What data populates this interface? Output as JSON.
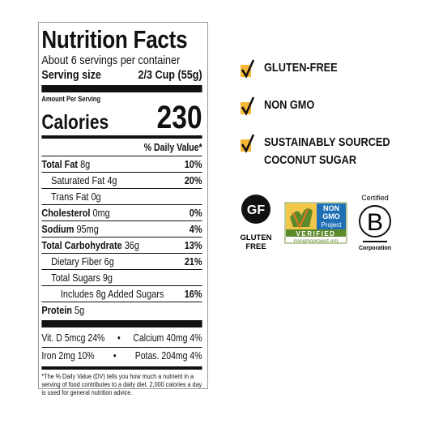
{
  "label": {
    "title": "Nutrition Facts",
    "servings": "About 6 servings per container",
    "serving_size_label": "Serving size",
    "serving_size_value": "2/3 Cup (55g)",
    "amount_per_serving": "Amount Per Serving",
    "calories_label": "Calories",
    "calories_value": 230,
    "dv_header": "% Daily Value*",
    "rows": [
      {
        "nutrient": "Total Fat",
        "amount": "8g",
        "dv": "10%",
        "level": 0
      },
      {
        "nutrient": "Saturated Fat 4g",
        "dv": "20%",
        "level": 1
      },
      {
        "nutrient": "Trans Fat 0g",
        "level": 1
      },
      {
        "nutrient": "Cholesterol",
        "amount": "0mg",
        "dv": "0%",
        "level": 0
      },
      {
        "nutrient": "Sodium",
        "amount": "95mg",
        "dv": "4%",
        "level": 0
      },
      {
        "nutrient": "Total Carbohydrate",
        "amount": "36g",
        "dv": "13%",
        "level": 0
      },
      {
        "nutrient": "Dietary Fiber 6g",
        "dv": "21%",
        "level": 1
      },
      {
        "nutrient": "Total Sugars 9g",
        "level": 1
      },
      {
        "nutrient": "Includes 8g Added Sugars",
        "dv": "16%",
        "level": 2
      },
      {
        "nutrient": "Protein",
        "amount": "5g",
        "level": 0
      }
    ],
    "vitamins": [
      [
        "Vit. D 5mcg 24%",
        "Calcium 40mg 4%"
      ],
      [
        "Iron 2mg 10%",
        "Potas. 204mg 4%"
      ]
    ],
    "separator": "•",
    "footnote": "*The % Daily Value (DV) tells you how much a nutrient in a serving of food contributes to a daily diet. 2,000 calories a day is used for general nutrition advice."
  },
  "claims": [
    [
      "GLUTEN-FREE"
    ],
    [
      "NON GMO"
    ],
    [
      "SUSTAINABLY SOURCED",
      "COCONUT SUGAR"
    ]
  ],
  "badges": {
    "gf": {
      "mark": "GF",
      "text": [
        "GLUTEN",
        "FREE"
      ]
    },
    "nongmo": {
      "top": "NON",
      "mid": "GMO",
      "project": "Project",
      "verified": "VERIFIED",
      "url": "nongmoproject.org"
    },
    "bcorp": {
      "top": "Certified",
      "mark": "B",
      "bottom": "Corporation"
    }
  }
}
